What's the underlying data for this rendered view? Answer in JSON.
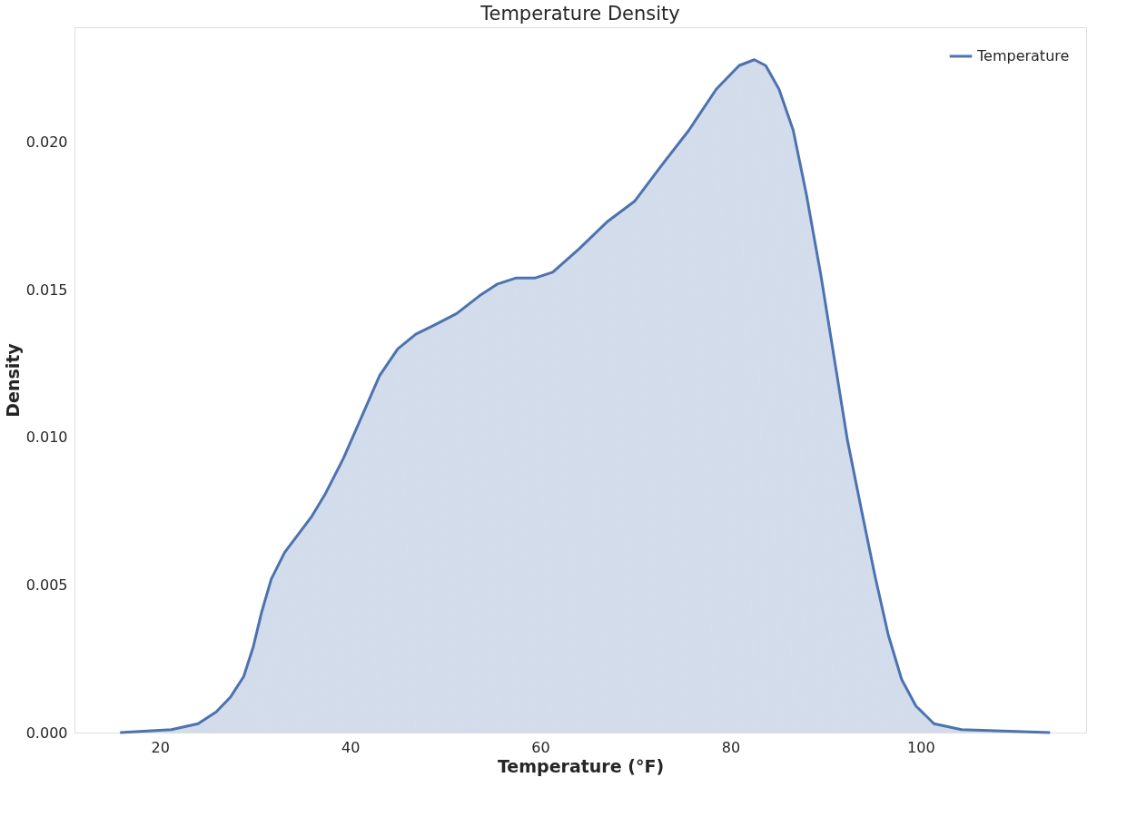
{
  "chart_data": {
    "type": "area",
    "title": "Temperature Density",
    "xlabel": "Temperature (°F)",
    "ylabel": "Density",
    "x": [
      15.8,
      21.2,
      24.0,
      25.9,
      27.4,
      28.8,
      29.8,
      30.7,
      31.7,
      33.1,
      34.5,
      35.9,
      37.4,
      39.3,
      41.2,
      43.1,
      45.0,
      46.9,
      48.8,
      51.2,
      53.6,
      55.5,
      57.4,
      59.4,
      61.3,
      64.1,
      67.0,
      69.9,
      72.7,
      75.6,
      78.5,
      80.9,
      82.5,
      83.7,
      85.1,
      86.6,
      88.0,
      89.5,
      90.9,
      92.3,
      93.8,
      95.2,
      96.6,
      98.0,
      99.5,
      101.4,
      104.3,
      113.6
    ],
    "series": [
      {
        "name": "Temperature",
        "color": "#4c72b0",
        "values": [
          0,
          0.0001,
          0.0003,
          0.0007,
          0.0012,
          0.0019,
          0.0029,
          0.0041,
          0.0052,
          0.0061,
          0.0067,
          0.0073,
          0.0081,
          0.0093,
          0.0107,
          0.0121,
          0.013,
          0.0135,
          0.0138,
          0.0142,
          0.0148,
          0.0152,
          0.0154,
          0.0154,
          0.0156,
          0.0164,
          0.0173,
          0.018,
          0.0192,
          0.0204,
          0.0218,
          0.0226,
          0.0228,
          0.0226,
          0.0218,
          0.0204,
          0.0182,
          0.0155,
          0.0127,
          0.0099,
          0.0075,
          0.0053,
          0.0033,
          0.0018,
          0.0009,
          0.0003,
          0.0001,
          0
        ]
      }
    ],
    "xlim": [
      11.0,
      117.4
    ],
    "ylim": [
      0,
      0.0239
    ],
    "xticks": [
      20,
      40,
      60,
      80,
      100
    ],
    "yticks": [
      {
        "value": 0,
        "label": "0.000"
      },
      0.005,
      {
        "value": 0.01,
        "label": "0.010"
      },
      0.015,
      {
        "value": 0.02,
        "label": "0.020"
      }
    ],
    "grid": false,
    "legend": "top right",
    "line_style": "solid",
    "marker": "none"
  }
}
